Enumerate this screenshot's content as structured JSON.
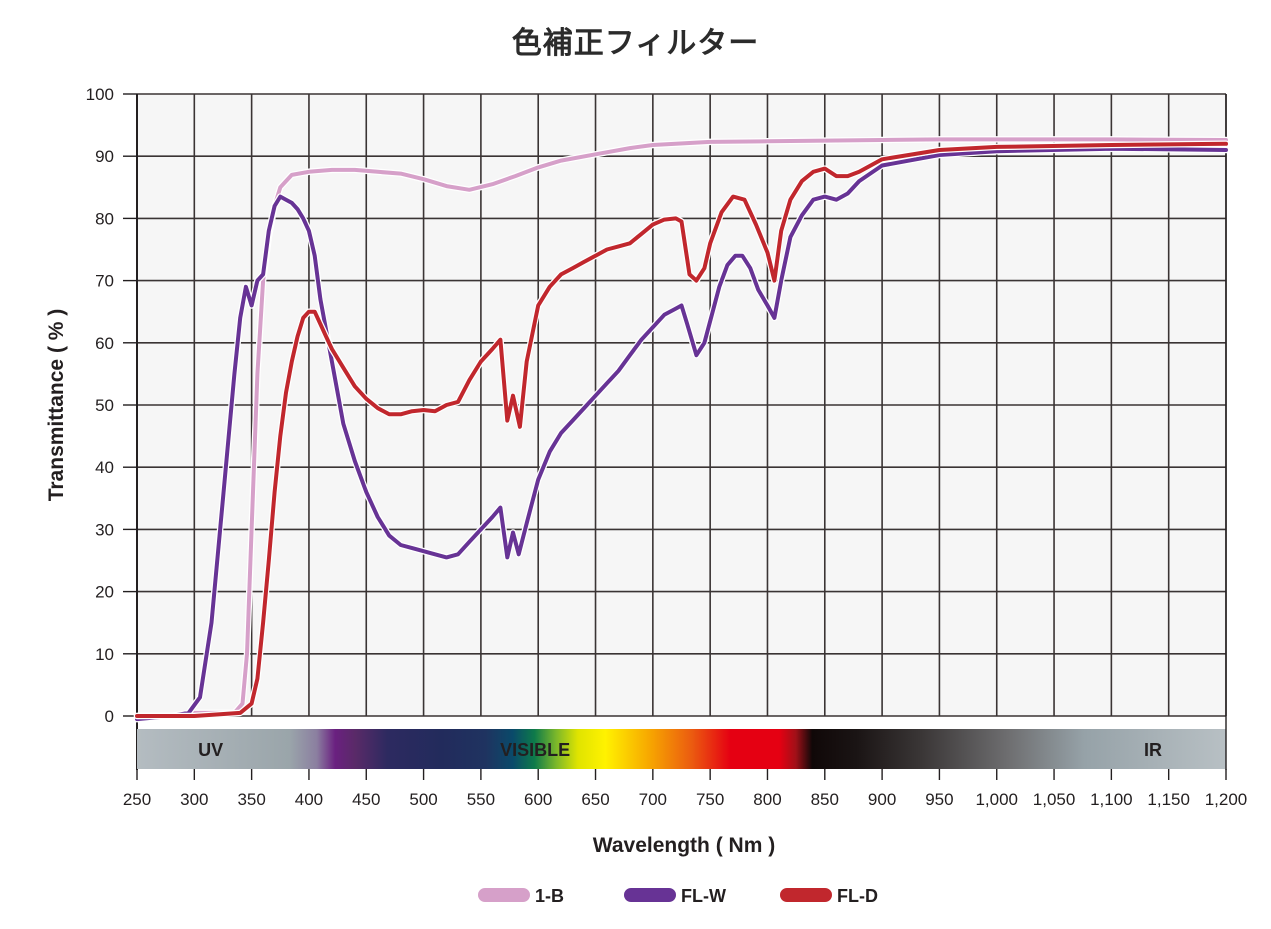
{
  "chart_data": {
    "type": "line",
    "title": "色補正フィルター",
    "xlabel": "Wavelength ( Nm )",
    "ylabel": "Transmittance ( % )",
    "xlim": [
      250,
      1200
    ],
    "ylim": [
      0,
      100
    ],
    "grid": true,
    "legend_position": "bottom",
    "x_ticks": [
      250,
      300,
      350,
      400,
      450,
      500,
      550,
      600,
      650,
      700,
      750,
      800,
      850,
      900,
      950,
      1000,
      1050,
      1100,
      1150,
      1200
    ],
    "x_tick_labels": [
      "250",
      "300",
      "350",
      "400",
      "450",
      "500",
      "550",
      "600",
      "650",
      "700",
      "750",
      "800",
      "850",
      "900",
      "950",
      "1,000",
      "1,050",
      "1,100",
      "1,150",
      "1,200"
    ],
    "y_ticks": [
      0,
      10,
      20,
      30,
      40,
      50,
      60,
      70,
      80,
      90,
      100
    ],
    "y_tick_labels": [
      "0",
      "10",
      "20",
      "30",
      "40",
      "50",
      "60",
      "70",
      "80",
      "90",
      "100"
    ],
    "spectrum_bands": [
      {
        "label": "UV",
        "x": 323
      },
      {
        "label": "VISIBLE",
        "x": 606
      },
      {
        "label": "IR",
        "x": 1145
      }
    ],
    "series": [
      {
        "name": "1-B",
        "color": "#d6a0c9",
        "points": [
          [
            250,
            0
          ],
          [
            280,
            0
          ],
          [
            300,
            0.5
          ],
          [
            320,
            0.5
          ],
          [
            335,
            0.5
          ],
          [
            342,
            2
          ],
          [
            346,
            10
          ],
          [
            350,
            30
          ],
          [
            355,
            55
          ],
          [
            360,
            70
          ],
          [
            365,
            77
          ],
          [
            370,
            82
          ],
          [
            375,
            85
          ],
          [
            380,
            86
          ],
          [
            385,
            87
          ],
          [
            400,
            87.5
          ],
          [
            420,
            87.8
          ],
          [
            440,
            87.8
          ],
          [
            460,
            87.5
          ],
          [
            480,
            87.2
          ],
          [
            500,
            86.3
          ],
          [
            520,
            85.2
          ],
          [
            540,
            84.6
          ],
          [
            560,
            85.5
          ],
          [
            580,
            86.8
          ],
          [
            600,
            88.2
          ],
          [
            620,
            89.3
          ],
          [
            650,
            90.3
          ],
          [
            680,
            91.3
          ],
          [
            700,
            91.8
          ],
          [
            750,
            92.3
          ],
          [
            800,
            92.4
          ],
          [
            850,
            92.5
          ],
          [
            900,
            92.6
          ],
          [
            950,
            92.7
          ],
          [
            1000,
            92.7
          ],
          [
            1100,
            92.7
          ],
          [
            1200,
            92.6
          ]
        ]
      },
      {
        "name": "FL-W",
        "color": "#673395",
        "points": [
          [
            250,
            -0.5
          ],
          [
            280,
            0
          ],
          [
            295,
            0.5
          ],
          [
            305,
            3
          ],
          [
            315,
            15
          ],
          [
            325,
            35
          ],
          [
            335,
            55
          ],
          [
            340,
            64
          ],
          [
            345,
            69
          ],
          [
            350,
            66
          ],
          [
            355,
            70
          ],
          [
            360,
            71
          ],
          [
            365,
            78
          ],
          [
            370,
            82
          ],
          [
            375,
            83.5
          ],
          [
            380,
            83
          ],
          [
            385,
            82.5
          ],
          [
            390,
            81.5
          ],
          [
            395,
            80
          ],
          [
            400,
            78
          ],
          [
            405,
            74
          ],
          [
            410,
            67
          ],
          [
            420,
            57
          ],
          [
            430,
            47
          ],
          [
            440,
            41
          ],
          [
            450,
            36
          ],
          [
            460,
            32
          ],
          [
            470,
            29
          ],
          [
            480,
            27.5
          ],
          [
            490,
            27
          ],
          [
            500,
            26.5
          ],
          [
            510,
            26
          ],
          [
            520,
            25.5
          ],
          [
            530,
            26
          ],
          [
            540,
            28
          ],
          [
            550,
            30
          ],
          [
            560,
            32
          ],
          [
            567,
            33.5
          ],
          [
            573,
            25.5
          ],
          [
            578,
            29.5
          ],
          [
            583,
            26
          ],
          [
            590,
            31
          ],
          [
            600,
            38
          ],
          [
            610,
            42.5
          ],
          [
            620,
            45.5
          ],
          [
            630,
            47.5
          ],
          [
            640,
            49.5
          ],
          [
            650,
            51.5
          ],
          [
            660,
            53.5
          ],
          [
            670,
            55.5
          ],
          [
            680,
            58
          ],
          [
            690,
            60.5
          ],
          [
            700,
            62.5
          ],
          [
            710,
            64.5
          ],
          [
            720,
            65.5
          ],
          [
            725,
            66
          ],
          [
            730,
            63
          ],
          [
            738,
            58
          ],
          [
            745,
            60
          ],
          [
            750,
            63.5
          ],
          [
            758,
            69
          ],
          [
            765,
            72.5
          ],
          [
            772,
            74
          ],
          [
            778,
            74
          ],
          [
            785,
            72
          ],
          [
            792,
            68.5
          ],
          [
            800,
            66
          ],
          [
            806,
            64
          ],
          [
            812,
            70
          ],
          [
            820,
            77
          ],
          [
            830,
            80.5
          ],
          [
            840,
            83
          ],
          [
            850,
            83.5
          ],
          [
            860,
            83
          ],
          [
            870,
            84
          ],
          [
            880,
            86
          ],
          [
            900,
            88.5
          ],
          [
            950,
            90.2
          ],
          [
            1000,
            90.8
          ],
          [
            1100,
            91.2
          ],
          [
            1200,
            91
          ]
        ]
      },
      {
        "name": "FL-D",
        "color": "#c1272d",
        "points": [
          [
            250,
            0
          ],
          [
            300,
            0
          ],
          [
            340,
            0.5
          ],
          [
            350,
            2
          ],
          [
            355,
            6
          ],
          [
            360,
            15
          ],
          [
            365,
            25
          ],
          [
            370,
            36
          ],
          [
            375,
            45
          ],
          [
            380,
            52
          ],
          [
            385,
            57
          ],
          [
            390,
            61
          ],
          [
            395,
            64
          ],
          [
            400,
            65
          ],
          [
            405,
            65
          ],
          [
            410,
            63
          ],
          [
            415,
            61
          ],
          [
            420,
            59
          ],
          [
            430,
            56
          ],
          [
            440,
            53
          ],
          [
            450,
            51
          ],
          [
            460,
            49.5
          ],
          [
            470,
            48.5
          ],
          [
            480,
            48.5
          ],
          [
            490,
            49
          ],
          [
            500,
            49.2
          ],
          [
            510,
            49
          ],
          [
            520,
            50
          ],
          [
            530,
            50.5
          ],
          [
            540,
            54
          ],
          [
            550,
            57
          ],
          [
            560,
            59
          ],
          [
            567,
            60.5
          ],
          [
            573,
            47.5
          ],
          [
            578,
            51.5
          ],
          [
            584,
            46.5
          ],
          [
            590,
            57
          ],
          [
            600,
            66
          ],
          [
            610,
            69
          ],
          [
            620,
            71
          ],
          [
            630,
            72
          ],
          [
            640,
            73
          ],
          [
            650,
            74
          ],
          [
            660,
            75
          ],
          [
            670,
            75.5
          ],
          [
            680,
            76
          ],
          [
            690,
            77.5
          ],
          [
            700,
            79
          ],
          [
            710,
            79.8
          ],
          [
            720,
            80
          ],
          [
            725,
            79.5
          ],
          [
            732,
            71
          ],
          [
            738,
            70
          ],
          [
            745,
            72
          ],
          [
            750,
            76
          ],
          [
            760,
            81
          ],
          [
            770,
            83.5
          ],
          [
            780,
            83
          ],
          [
            790,
            79
          ],
          [
            800,
            74.5
          ],
          [
            806,
            70
          ],
          [
            812,
            78
          ],
          [
            820,
            83
          ],
          [
            830,
            86
          ],
          [
            840,
            87.5
          ],
          [
            850,
            88
          ],
          [
            860,
            86.8
          ],
          [
            870,
            86.8
          ],
          [
            880,
            87.5
          ],
          [
            900,
            89.5
          ],
          [
            950,
            91
          ],
          [
            1000,
            91.5
          ],
          [
            1100,
            91.8
          ],
          [
            1200,
            92
          ]
        ]
      }
    ]
  },
  "legend": [
    {
      "label": "1-B",
      "color": "#d6a0c9"
    },
    {
      "label": "FL-W",
      "color": "#673395"
    },
    {
      "label": "FL-D",
      "color": "#c1272d"
    }
  ]
}
